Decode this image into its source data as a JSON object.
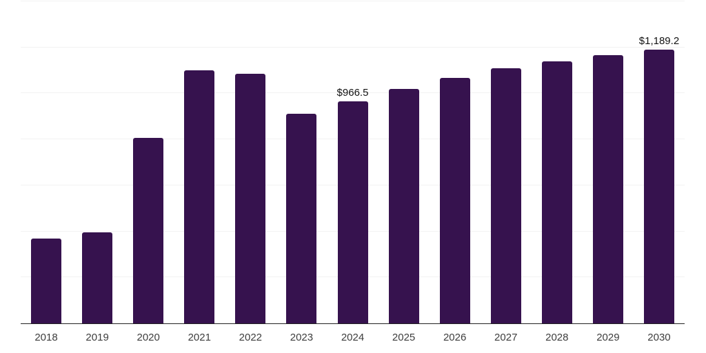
{
  "chart_data": {
    "type": "bar",
    "title": "",
    "xlabel": "",
    "ylabel": "",
    "categories": [
      "2018",
      "2019",
      "2020",
      "2021",
      "2022",
      "2023",
      "2024",
      "2025",
      "2026",
      "2027",
      "2028",
      "2029",
      "2030"
    ],
    "values": [
      368,
      397,
      806,
      1101,
      1086,
      910,
      966.5,
      1020,
      1067,
      1110,
      1140,
      1167,
      1189.2
    ],
    "annotations": [
      {
        "index": 6,
        "text": "$966.5"
      },
      {
        "index": 12,
        "text": "$1,189.2"
      }
    ],
    "ylim": [
      0,
      1400
    ],
    "gridline_interval": 200,
    "grid": true,
    "legend": false,
    "y_axis_tick_labels_visible": false
  },
  "style": {
    "bar_color": "#36124e",
    "grid_color": "#f2f2f2",
    "axis_color": "#212121",
    "tick_label_color": "#3d3d3d",
    "annotation_color": "#121212",
    "background_color": "#ffffff"
  }
}
